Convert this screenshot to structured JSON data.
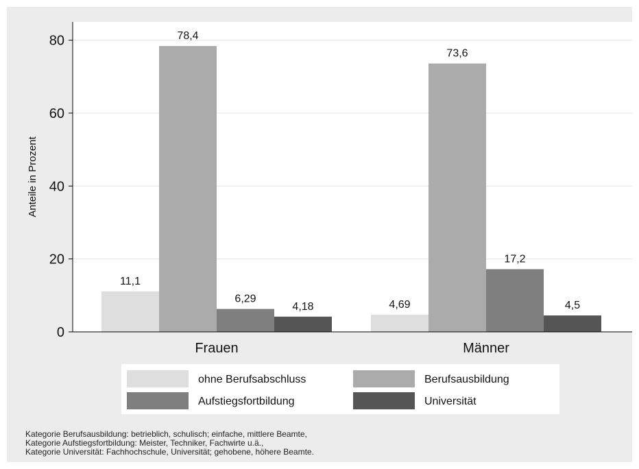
{
  "chart_data": {
    "type": "bar",
    "categories": [
      "Frauen",
      "Männer"
    ],
    "series": [
      {
        "name": "ohne Berufsabschluss",
        "values": [
          11.1,
          4.69
        ],
        "labels": [
          "11,1",
          "4,69"
        ],
        "color": "#dedede"
      },
      {
        "name": "Berufsausbildung",
        "values": [
          78.4,
          73.6
        ],
        "labels": [
          "78,4",
          "73,6"
        ],
        "color": "#ababab"
      },
      {
        "name": "Aufstiegsfortbildung",
        "values": [
          6.29,
          17.2
        ],
        "labels": [
          "6,29",
          "17,2"
        ],
        "color": "#7f7f7f"
      },
      {
        "name": "Universität",
        "values": [
          4.18,
          4.5
        ],
        "labels": [
          "4,18",
          "4,5"
        ],
        "color": "#555555"
      }
    ],
    "ylabel": "Anteile in Prozent",
    "ylim": [
      0,
      85
    ],
    "yticks": [
      0,
      20,
      40,
      60,
      80
    ],
    "grid": true,
    "legend": "bottom"
  },
  "notes": [
    "Kategorie Berufsausbildung: betrieblich, schulisch; einfache, mittlere Beamte,",
    "Kategorie Aufstiegsfortbildung: Meister, Techniker, Fachwirte u.ä.,",
    "Kategorie Universität: Fachhochschule, Universität; gehobene, höhere Beamte."
  ]
}
